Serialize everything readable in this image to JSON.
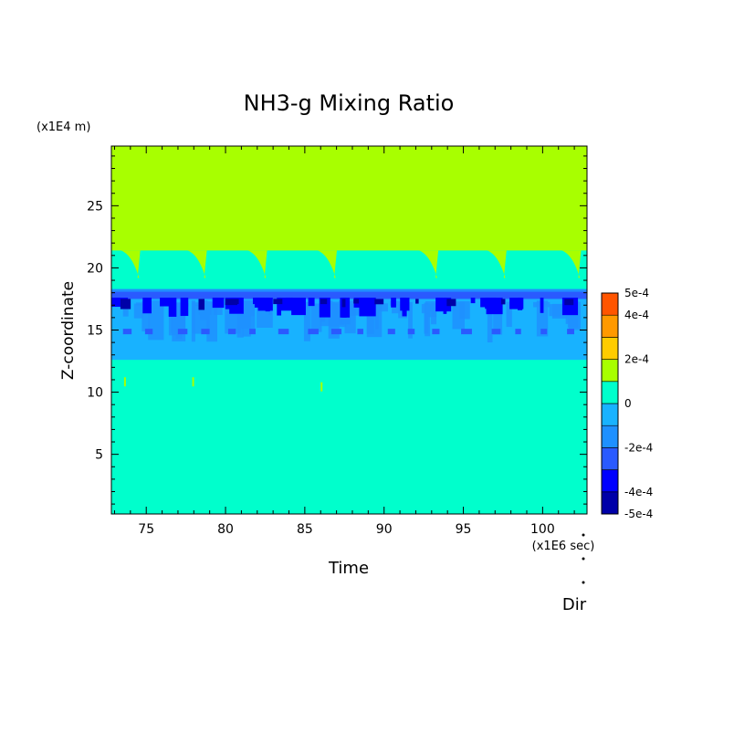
{
  "chart_data": {
    "type": "heatmap",
    "title": "NH3-g Mixing Ratio",
    "xlabel": "Time",
    "ylabel": "Z-coordinate",
    "x_unit": "(x1E6 sec)",
    "y_unit": "(x1E4 m)",
    "xlim": [
      72.8,
      102.8
    ],
    "ylim": [
      0.2,
      29.8
    ],
    "x_ticks": [
      75,
      80,
      85,
      90,
      95,
      100
    ],
    "y_ticks": [
      5,
      10,
      15,
      20,
      25
    ],
    "colorbar": {
      "levels": [
        -0.0005,
        -0.0004,
        -0.0003,
        -0.0002,
        -0.0001,
        0,
        0.0001,
        0.0002,
        0.0003,
        0.0004,
        0.0005
      ],
      "colors": [
        "#0000a8",
        "#0000ff",
        "#2a5aff",
        "#1e90ff",
        "#18b2ff",
        "#00ffcc",
        "#a8ff00",
        "#ffcc00",
        "#ff9900",
        "#ff5500",
        "#ff2020"
      ],
      "labels": [
        "5e-4",
        "4e-4",
        "2e-4",
        "0",
        "-2e-4",
        "-4e-4",
        "-5e-4"
      ]
    },
    "regions": [
      {
        "range": "z 0–12.5",
        "value_range": [
          -0.0001,
          0
        ],
        "color": "#00ffcc"
      },
      {
        "range": "z 12.5–17.5",
        "value_range": [
          -0.0003,
          -0.0001
        ],
        "color": "#18b2ff"
      },
      {
        "range": "z 17.5–18.3",
        "value_range": [
          -0.0005,
          -0.0003
        ],
        "color": "#0000ff"
      },
      {
        "range": "z 18.3–21.4",
        "value_range": [
          -0.0001,
          0
        ],
        "color": "#00ffcc"
      },
      {
        "range": "z 21.4–29.8",
        "value_range": [
          0,
          0.0001
        ],
        "color": "#a8ff00"
      }
    ],
    "dips_x": [
      74.2,
      78.4,
      82.2,
      86.6,
      93.0,
      97.3,
      102.0
    ],
    "footer_label": "Dir"
  }
}
